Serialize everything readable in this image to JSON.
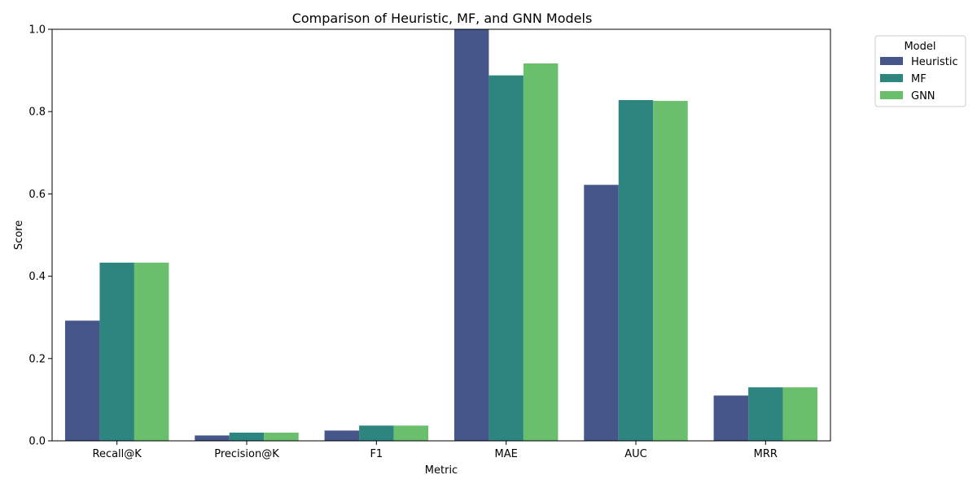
{
  "chart_data": {
    "type": "bar",
    "title": "Comparison of Heuristic, MF, and GNN Models",
    "xlabel": "Metric",
    "ylabel": "Score",
    "ylim": [
      0,
      1.0
    ],
    "yticks": [
      "0.0",
      "0.2",
      "0.4",
      "0.6",
      "0.8",
      "1.0"
    ],
    "categories": [
      "Recall@K",
      "Precision@K",
      "F1",
      "MAE",
      "AUC",
      "MRR"
    ],
    "series": [
      {
        "name": "Heuristic",
        "color": "#46558a",
        "values": [
          0.292,
          0.013,
          0.025,
          1.0,
          0.622,
          0.11
        ]
      },
      {
        "name": "MF",
        "color": "#2e8580",
        "values": [
          0.433,
          0.02,
          0.037,
          0.888,
          0.828,
          0.13
        ]
      },
      {
        "name": "GNN",
        "color": "#6abf6c",
        "values": [
          0.433,
          0.02,
          0.037,
          0.917,
          0.826,
          0.13
        ]
      }
    ],
    "legend": {
      "title": "Model",
      "position": "outside-top-right"
    },
    "grid": false
  }
}
